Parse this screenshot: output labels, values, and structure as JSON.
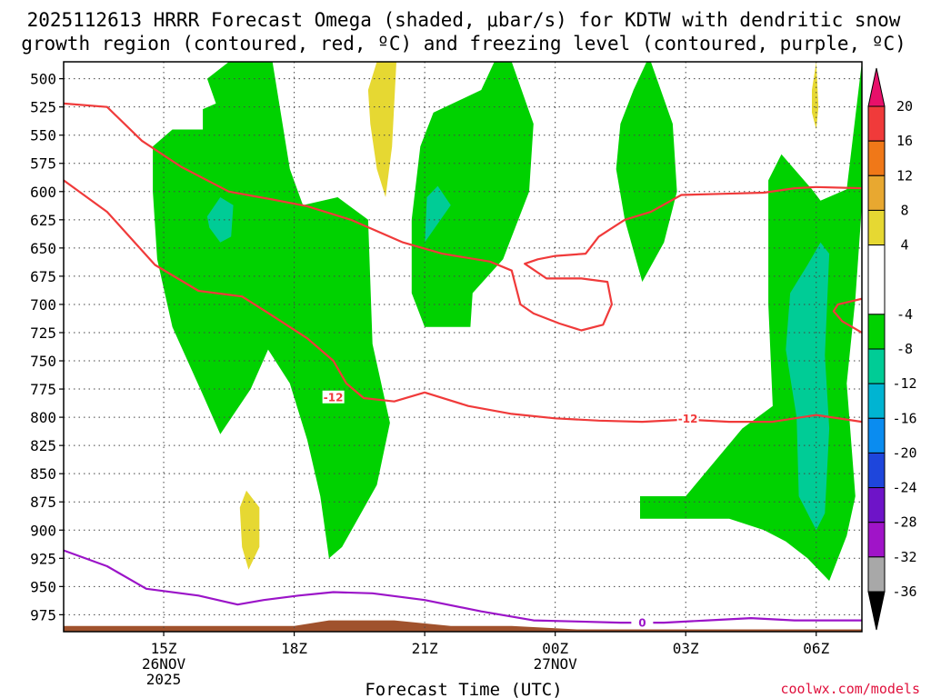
{
  "chart_data": {
    "type": "heatmap",
    "title_lines": [
      "2025112613 HRRR Forecast Omega (shaded, μbar/s) for KDTW with dendritic snow",
      "growth region (contoured, red, ºC) and freezing level (contoured, purple, ºC)"
    ],
    "xlabel": "Forecast Time (UTC)",
    "credit": "coolwx.com/models",
    "x_range_hours": [
      12.7,
      31.05
    ],
    "y_range_hpa": [
      485,
      990
    ],
    "y_ticks": [
      500,
      525,
      550,
      575,
      600,
      625,
      650,
      675,
      700,
      725,
      750,
      775,
      800,
      825,
      850,
      875,
      900,
      925,
      950,
      975
    ],
    "x_ticks": [
      {
        "hour": 15,
        "label": "15Z",
        "sub": [
          "26NOV",
          "2025"
        ]
      },
      {
        "hour": 18,
        "label": "18Z",
        "sub": []
      },
      {
        "hour": 21,
        "label": "21Z",
        "sub": []
      },
      {
        "hour": 24,
        "label": "00Z",
        "sub": [
          "27NOV"
        ]
      },
      {
        "hour": 27,
        "label": "03Z",
        "sub": []
      },
      {
        "hour": 30,
        "label": "06Z",
        "sub": []
      }
    ],
    "colorbar": {
      "labels": [
        "20",
        "16",
        "12",
        "8",
        "4",
        "-4",
        "-8",
        "-12",
        "-16",
        "-20",
        "-24",
        "-28",
        "-32",
        "-36"
      ],
      "top_arrow_color": "#e8106a",
      "bottom_arrow_color": "#000000",
      "segments": [
        {
          "from": 16,
          "to": 20,
          "color": "#f03a3a"
        },
        {
          "from": 12,
          "to": 16,
          "color": "#f07818"
        },
        {
          "from": 8,
          "to": 12,
          "color": "#e8a830"
        },
        {
          "from": 4,
          "to": 8,
          "color": "#e6d832"
        },
        {
          "from": -4,
          "to": 4,
          "color": "#ffffff"
        },
        {
          "from": -8,
          "to": -4,
          "color": "#00d200"
        },
        {
          "from": -12,
          "to": -8,
          "color": "#00cc96"
        },
        {
          "from": -16,
          "to": -12,
          "color": "#00b4d2"
        },
        {
          "from": -20,
          "to": -16,
          "color": "#0a8cf0"
        },
        {
          "from": -24,
          "to": -20,
          "color": "#1e46dc"
        },
        {
          "from": -28,
          "to": -24,
          "color": "#6e14c8"
        },
        {
          "from": -32,
          "to": -28,
          "color": "#a014c8"
        },
        {
          "from": -36,
          "to": -32,
          "color": "#a8a8a8"
        }
      ]
    },
    "omega_regions": [
      {
        "level": -6,
        "color": "#00d200",
        "points": [
          [
            14.75,
            560
          ],
          [
            15.2,
            545
          ],
          [
            15.9,
            545
          ],
          [
            15.9,
            527
          ],
          [
            16.2,
            522
          ],
          [
            16.0,
            500
          ],
          [
            16.5,
            485
          ],
          [
            17.5,
            485
          ],
          [
            17.9,
            580
          ],
          [
            18.2,
            612
          ],
          [
            19.0,
            605
          ],
          [
            19.7,
            625
          ],
          [
            19.8,
            735
          ],
          [
            20.2,
            805
          ],
          [
            19.9,
            860
          ],
          [
            19.1,
            915
          ],
          [
            18.8,
            925
          ],
          [
            18.6,
            870
          ],
          [
            18.3,
            820
          ],
          [
            17.9,
            770
          ],
          [
            17.4,
            740
          ],
          [
            17.0,
            775
          ],
          [
            16.3,
            815
          ],
          [
            15.9,
            780
          ],
          [
            15.2,
            720
          ],
          [
            14.85,
            660
          ],
          [
            14.75,
            600
          ]
        ]
      },
      {
        "level": -6,
        "color": "#00d200",
        "points": [
          [
            20.7,
            625
          ],
          [
            20.9,
            560
          ],
          [
            21.2,
            530
          ],
          [
            22.3,
            510
          ],
          [
            22.6,
            485
          ],
          [
            23.0,
            485
          ],
          [
            23.5,
            540
          ],
          [
            23.4,
            600
          ],
          [
            22.8,
            660
          ],
          [
            22.1,
            690
          ],
          [
            22.05,
            720
          ],
          [
            21.0,
            720
          ],
          [
            20.7,
            690
          ]
        ]
      },
      {
        "level": -6,
        "color": "#00d200",
        "points": [
          [
            26.2,
            485
          ],
          [
            26.7,
            540
          ],
          [
            26.8,
            600
          ],
          [
            26.5,
            645
          ],
          [
            26.0,
            680
          ],
          [
            25.6,
            625
          ],
          [
            25.4,
            580
          ],
          [
            25.5,
            540
          ],
          [
            25.8,
            510
          ],
          [
            26.1,
            485
          ]
        ]
      },
      {
        "level": -6,
        "color": "#00d200",
        "points": [
          [
            29.2,
            567
          ],
          [
            29.9,
            598
          ],
          [
            30.1,
            608
          ],
          [
            30.7,
            598
          ],
          [
            31.05,
            485
          ],
          [
            31.05,
            612
          ],
          [
            30.9,
            695
          ],
          [
            30.7,
            770
          ],
          [
            30.9,
            870
          ],
          [
            30.7,
            905
          ],
          [
            30.3,
            945
          ],
          [
            29.8,
            925
          ],
          [
            29.3,
            910
          ],
          [
            28.8,
            900
          ],
          [
            28.0,
            890
          ],
          [
            27.0,
            890
          ],
          [
            25.95,
            890
          ],
          [
            25.95,
            870
          ],
          [
            27.0,
            870
          ],
          [
            28.3,
            810
          ],
          [
            29.0,
            790
          ],
          [
            28.9,
            700
          ],
          [
            28.9,
            590
          ]
        ]
      },
      {
        "level": -10,
        "color": "#00cc96",
        "points": [
          [
            16.0,
            622
          ],
          [
            16.3,
            605
          ],
          [
            16.6,
            612
          ],
          [
            16.55,
            640
          ],
          [
            16.3,
            645
          ],
          [
            16.05,
            632
          ]
        ]
      },
      {
        "level": -10,
        "color": "#00cc96",
        "points": [
          [
            21.0,
            650
          ],
          [
            21.05,
            605
          ],
          [
            21.3,
            595
          ],
          [
            21.6,
            612
          ],
          [
            21.0,
            645
          ]
        ]
      },
      {
        "level": -10,
        "color": "#00cc96",
        "points": [
          [
            29.8,
            665
          ],
          [
            30.1,
            645
          ],
          [
            30.3,
            655
          ],
          [
            30.2,
            745
          ],
          [
            30.3,
            810
          ],
          [
            30.2,
            885
          ],
          [
            30.0,
            900
          ],
          [
            29.6,
            870
          ],
          [
            29.55,
            800
          ],
          [
            29.3,
            740
          ],
          [
            29.4,
            690
          ]
        ]
      },
      {
        "level": 6,
        "color": "#e6d832",
        "points": [
          [
            19.7,
            510
          ],
          [
            19.9,
            485
          ],
          [
            20.35,
            485
          ],
          [
            20.25,
            560
          ],
          [
            20.1,
            605
          ],
          [
            19.9,
            580
          ],
          [
            19.75,
            540
          ]
        ]
      },
      {
        "level": 6,
        "color": "#e6d832",
        "points": [
          [
            16.75,
            880
          ],
          [
            16.9,
            865
          ],
          [
            17.2,
            880
          ],
          [
            17.2,
            915
          ],
          [
            16.95,
            935
          ],
          [
            16.8,
            915
          ]
        ]
      },
      {
        "level": 6,
        "color": "#e6d832",
        "points": [
          [
            29.9,
            510
          ],
          [
            30.0,
            485
          ],
          [
            30.05,
            525
          ],
          [
            30.0,
            545
          ],
          [
            29.9,
            530
          ]
        ]
      }
    ],
    "contours": [
      {
        "name": "-12",
        "variable": "temperature",
        "color": "#f03a3a",
        "label": "-12",
        "label_at": [
          [
            18.9,
            782
          ],
          [
            27.05,
            801
          ]
        ],
        "points": [
          [
            12.7,
            590
          ],
          [
            13.7,
            618
          ],
          [
            14.8,
            665
          ],
          [
            15.8,
            688
          ],
          [
            16.8,
            693
          ],
          [
            17.5,
            710
          ],
          [
            18.3,
            730
          ],
          [
            18.9,
            750
          ],
          [
            19.2,
            770
          ],
          [
            19.6,
            783
          ],
          [
            20.3,
            786
          ],
          [
            21.0,
            778
          ],
          [
            22.0,
            790
          ],
          [
            23.0,
            797
          ],
          [
            24.0,
            801
          ],
          [
            25.0,
            803
          ],
          [
            26.0,
            804
          ],
          [
            27.0,
            802
          ],
          [
            28.0,
            804
          ],
          [
            29.0,
            804
          ],
          [
            30.0,
            798
          ],
          [
            31.05,
            804
          ]
        ]
      },
      {
        "name": "-12",
        "variable": "temperature",
        "color": "#f03a3a",
        "label": "",
        "label_at": [],
        "points": [
          [
            12.7,
            522
          ],
          [
            13.7,
            525
          ],
          [
            14.5,
            555
          ],
          [
            15.4,
            578
          ],
          [
            16.5,
            600
          ],
          [
            17.5,
            607
          ],
          [
            18.3,
            613
          ],
          [
            19.3,
            625
          ],
          [
            20.5,
            645
          ],
          [
            21.4,
            655
          ],
          [
            22.5,
            662
          ],
          [
            23.0,
            670
          ],
          [
            23.2,
            700
          ],
          [
            23.5,
            708
          ],
          [
            24.1,
            717
          ],
          [
            24.6,
            723
          ],
          [
            25.1,
            718
          ],
          [
            25.3,
            700
          ],
          [
            25.2,
            680
          ],
          [
            24.6,
            677
          ],
          [
            23.8,
            677
          ],
          [
            23.3,
            664
          ],
          [
            23.6,
            660
          ],
          [
            24.0,
            657
          ],
          [
            24.7,
            655
          ],
          [
            25.0,
            640
          ],
          [
            25.6,
            625
          ],
          [
            26.2,
            618
          ],
          [
            26.9,
            603
          ],
          [
            27.8,
            602
          ],
          [
            28.8,
            601
          ],
          [
            29.5,
            597
          ],
          [
            30.0,
            596
          ],
          [
            31.05,
            597
          ]
        ]
      },
      {
        "name": "-12",
        "variable": "temperature",
        "color": "#f03a3a",
        "label": "",
        "label_at": [],
        "points": [
          [
            31.05,
            695
          ],
          [
            30.5,
            700
          ],
          [
            30.4,
            706
          ],
          [
            30.6,
            715
          ],
          [
            31.05,
            725
          ]
        ]
      },
      {
        "name": "0",
        "variable": "temperature",
        "color": "#9b14c8",
        "label": "0",
        "label_at": [
          [
            26.0,
            982
          ]
        ],
        "points": [
          [
            12.7,
            918
          ],
          [
            13.7,
            932
          ],
          [
            14.6,
            952
          ],
          [
            15.8,
            958
          ],
          [
            16.7,
            966
          ],
          [
            17.3,
            962
          ],
          [
            18.1,
            958
          ],
          [
            18.9,
            955
          ],
          [
            19.8,
            956
          ],
          [
            21.0,
            962
          ],
          [
            22.3,
            972
          ],
          [
            23.5,
            980
          ],
          [
            24.5,
            981
          ],
          [
            25.5,
            982
          ],
          [
            26.5,
            982
          ],
          [
            27.5,
            980
          ],
          [
            28.5,
            978
          ],
          [
            29.5,
            980
          ],
          [
            31.05,
            980
          ]
        ]
      }
    ],
    "terrain": {
      "color": "#a0522d",
      "points": [
        [
          12.7,
          985
        ],
        [
          18.0,
          985
        ],
        [
          18.8,
          980
        ],
        [
          20.3,
          980
        ],
        [
          21.6,
          985
        ],
        [
          23.0,
          985
        ],
        [
          24.5,
          988
        ],
        [
          31.05,
          988
        ]
      ]
    }
  }
}
